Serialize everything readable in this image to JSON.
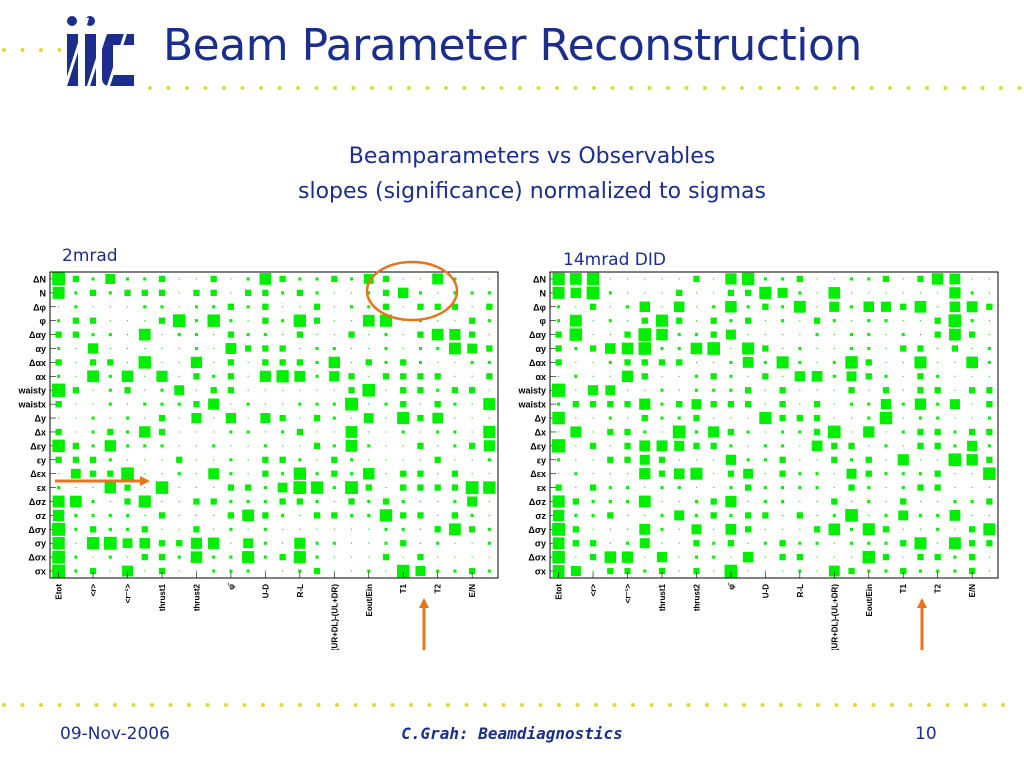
{
  "header": {
    "title": "Beam Parameter Reconstruction",
    "logo_text": "ilc"
  },
  "subtitle": {
    "line1": "Beamparameters vs Observables",
    "line2": "slopes (significance) normalized to sigmas"
  },
  "panels": [
    {
      "label": "2mrad",
      "row_labels": [
        "ΔN",
        "N",
        "Δφ",
        "φ",
        "Δαy",
        "αy",
        "Δαx",
        "αx",
        "waisty",
        "waistx",
        "Δy",
        "Δx",
        "Δεy",
        "εy",
        "Δεx",
        "εx",
        "Δσz",
        "σz",
        "Δσy",
        "σy",
        "Δσx",
        "σx"
      ],
      "col_labels": [
        "Etot",
        "<r>",
        "<r⁻¹>",
        "thrust1",
        "thrust2",
        "φ̄",
        "U-D",
        "R-L",
        "(UR+DL)-(UL+DR)",
        "Eout/Ein",
        "T1",
        "T2",
        "E/N"
      ]
    },
    {
      "label": "14mrad DID",
      "row_labels": [
        "ΔN",
        "N",
        "Δφ",
        "φ",
        "Δαy",
        "αy",
        "Δαx",
        "αx",
        "waisty",
        "waistx",
        "Δy",
        "Δx",
        "Δεy",
        "εy",
        "Δεx",
        "εx",
        "Δσz",
        "σz",
        "Δσy",
        "σy",
        "Δσx",
        "σx"
      ],
      "col_labels": [
        "Etot",
        "<r>",
        "<r⁻¹>",
        "thrust1",
        "thrust2",
        "φ̄",
        "U-D",
        "R-L",
        "(UR+DL)-(UL+DR)",
        "Eout/Ein",
        "T1",
        "T2",
        "E/N"
      ]
    }
  ],
  "footer": {
    "date": "09-Nov-2006",
    "author": "C.Grah: Beamdiagnostics",
    "page": "10"
  },
  "colors": {
    "title": "#1b2e8c",
    "dots": "#d9dc3a",
    "cells": "#00ee00",
    "annotation": "#e8731c"
  }
}
